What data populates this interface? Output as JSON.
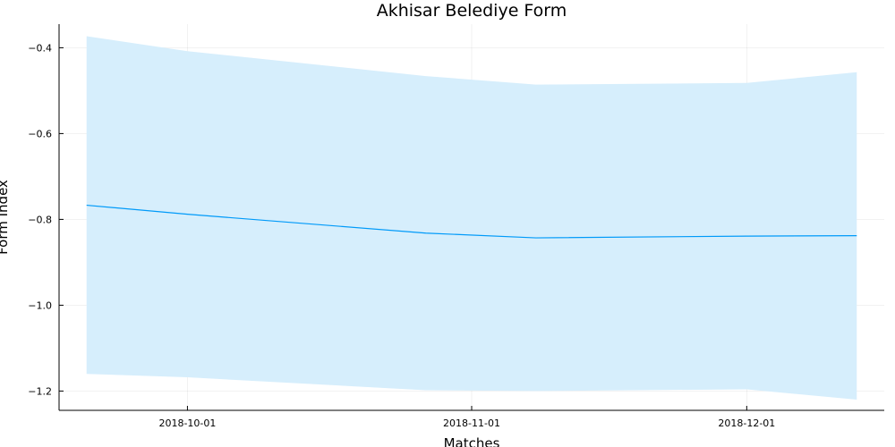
{
  "chart_data": {
    "type": "line",
    "title": "Akhisar Belediye Form",
    "xlabel": "Matches",
    "ylabel": "Form Index",
    "x_type": "date",
    "x_ticks": [
      "2018-10-01",
      "2018-11-01",
      "2018-12-01"
    ],
    "y_ticks": [
      -0.4,
      -0.6,
      -0.8,
      -1.0,
      -1.2
    ],
    "y_tick_labels": [
      "−0.4",
      "−0.6",
      "−0.8",
      "−1.0",
      "−1.2"
    ],
    "xlim": [
      "2018-09-17",
      "2018-12-16"
    ],
    "ylim": [
      -1.245,
      -0.345
    ],
    "grid": true,
    "legend": "none",
    "series": [
      {
        "color": "#009af9",
        "band_color": "#d6eefc",
        "points": [
          {
            "x": "2018-09-20",
            "y": -0.767,
            "lower": -1.16,
            "upper": -0.373
          },
          {
            "x": "2018-10-01",
            "y": -0.788,
            "lower": -1.168,
            "upper": -0.408
          },
          {
            "x": "2018-10-27",
            "y": -0.832,
            "lower": -1.198,
            "upper": -0.466
          },
          {
            "x": "2018-11-08",
            "y": -0.843,
            "lower": -1.2,
            "upper": -0.486
          },
          {
            "x": "2018-12-01",
            "y": -0.839,
            "lower": -1.196,
            "upper": -0.482
          },
          {
            "x": "2018-12-13",
            "y": -0.838,
            "lower": -1.22,
            "upper": -0.457
          }
        ]
      }
    ]
  }
}
